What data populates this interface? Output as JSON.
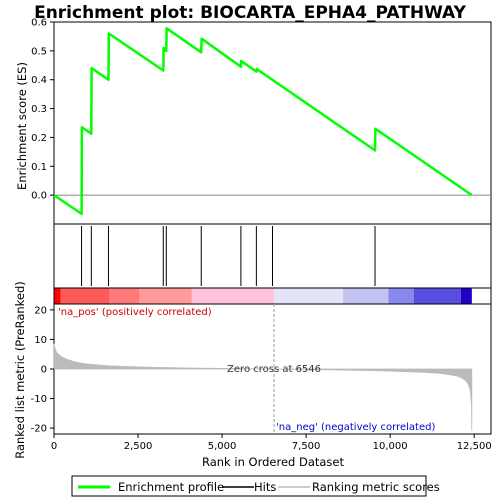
{
  "chart_data": {
    "type": "line",
    "title": "Enrichment plot: BIOCARTA_EPHA4_PATHWAY",
    "xlabel": "Rank in Ordered Dataset",
    "xlim": [
      0,
      13000
    ],
    "x_ticks": [
      "0",
      "2,500",
      "5,000",
      "7,500",
      "10,000",
      "12,500"
    ],
    "x_tick_values": [
      0,
      2500,
      5000,
      7500,
      10000,
      12500
    ],
    "top_panel": {
      "ylabel": "Enrichment score (ES)",
      "ylim": [
        -0.1,
        0.6
      ],
      "y_ticks": [
        "0.0",
        "0.1",
        "0.2",
        "0.3",
        "0.4",
        "0.5",
        "0.6"
      ],
      "y_tick_values": [
        0.0,
        0.1,
        0.2,
        0.3,
        0.4,
        0.5,
        0.6
      ],
      "series": [
        {
          "name": "Enrichment profile",
          "color": "#00ff00",
          "x": [
            0,
            820,
            830,
            1110,
            1120,
            1620,
            1630,
            3250,
            3260,
            3340,
            3350,
            4380,
            4390,
            5560,
            5570,
            6020,
            6030,
            9550,
            9560,
            12430
          ],
          "y": [
            0.0,
            -0.065,
            0.235,
            0.213,
            0.44,
            0.4,
            0.56,
            0.432,
            0.51,
            0.5,
            0.578,
            0.495,
            0.542,
            0.445,
            0.465,
            0.428,
            0.437,
            0.155,
            0.23,
            0.0
          ]
        }
      ]
    },
    "hits": {
      "name": "Hits",
      "color": "#000000",
      "x": [
        820,
        1110,
        1620,
        3250,
        3340,
        4380,
        5560,
        6020,
        6500,
        9550
      ]
    },
    "color_bar": {
      "segments": [
        {
          "start": 0,
          "end": 200,
          "color": "#ff0000"
        },
        {
          "start": 200,
          "end": 1650,
          "color": "#ff5a5a"
        },
        {
          "start": 1650,
          "end": 2550,
          "color": "#ff7a7a"
        },
        {
          "start": 2550,
          "end": 4100,
          "color": "#ff9a9a"
        },
        {
          "start": 4100,
          "end": 6546,
          "color": "#ffc4dc"
        },
        {
          "start": 6546,
          "end": 8600,
          "color": "#e4e4f8"
        },
        {
          "start": 8600,
          "end": 9950,
          "color": "#c4c4f4"
        },
        {
          "start": 9950,
          "end": 10700,
          "color": "#8888ee"
        },
        {
          "start": 10700,
          "end": 12100,
          "color": "#5a4fe0"
        },
        {
          "start": 12100,
          "end": 12430,
          "color": "#1e00c8"
        }
      ]
    },
    "bottom_panel": {
      "ylabel": "Ranked list metric (PreRanked)",
      "ylim": [
        -22,
        22
      ],
      "y_ticks": [
        "20",
        "10",
        "0",
        "-10",
        "-20"
      ],
      "y_tick_values": [
        20,
        10,
        0,
        -10,
        -20
      ],
      "series": [
        {
          "name": "Ranking metric scores",
          "color": "#bbbbbb",
          "x": [
            0,
            30,
            80,
            150,
            250,
            400,
            600,
            800,
            1000,
            1300,
            1600,
            2000,
            2500,
            3000,
            3500,
            4000,
            5000,
            6000,
            6546,
            7000,
            8000,
            9000,
            9500,
            10000,
            10500,
            11000,
            11400,
            11700,
            12000,
            12150,
            12250,
            12320,
            12380,
            12420,
            12430
          ],
          "y": [
            8.5,
            6.8,
            5.6,
            4.8,
            4.0,
            3.2,
            2.5,
            2.0,
            1.7,
            1.4,
            1.1,
            0.9,
            0.7,
            0.55,
            0.45,
            0.35,
            0.2,
            0.08,
            0.0,
            -0.1,
            -0.25,
            -0.45,
            -0.55,
            -0.7,
            -0.9,
            -1.1,
            -1.4,
            -1.8,
            -2.4,
            -3.1,
            -4.0,
            -5.0,
            -7.0,
            -12.0,
            -21.0
          ]
        }
      ],
      "annotations": {
        "pos_label": "'na_pos' (positively correlated)",
        "neg_label": "'na_neg' (negatively correlated)",
        "zero_cross": "Zero cross at 6546",
        "zero_cross_x": 6546
      }
    },
    "legend": [
      {
        "label": "Enrichment profile",
        "color": "#00ff00"
      },
      {
        "label": "Hits",
        "color": "#000000"
      },
      {
        "label": "Ranking metric scores",
        "color": "#bbbbbb"
      }
    ],
    "legend_position": "bottom"
  }
}
